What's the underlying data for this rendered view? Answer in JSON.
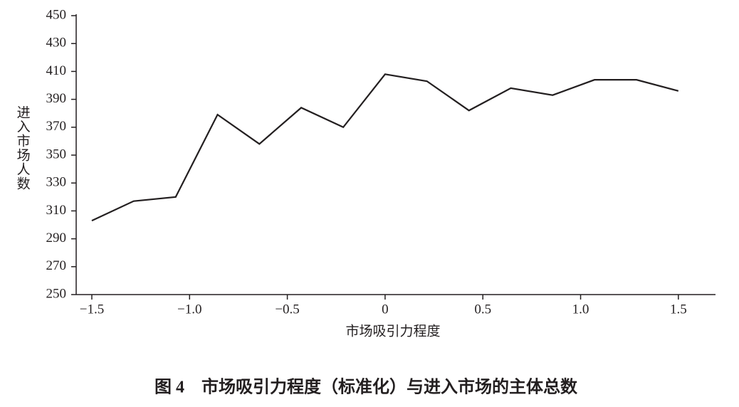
{
  "chart_data": {
    "type": "line",
    "title": "图 4　市场吸引力程度（标准化）与进入市场的主体总数",
    "x_label": "市场吸引力程度",
    "y_label": "进入市场人数",
    "x": [
      -1.5,
      -1.286,
      -1.071,
      -0.857,
      -0.643,
      -0.429,
      -0.214,
      0,
      0.214,
      0.429,
      0.643,
      0.857,
      1.071,
      1.286,
      1.5
    ],
    "series": [
      {
        "color": "#231f20",
        "values": [
          303,
          317,
          320,
          379,
          358,
          384,
          370,
          408,
          403,
          382,
          398,
          393,
          404,
          404,
          396
        ]
      }
    ],
    "xlim": [
      -1.58,
      1.69
    ],
    "ylim": [
      250,
      450
    ],
    "xticks": [
      {
        "value": -1.5,
        "label": "−1.5"
      },
      {
        "value": -1,
        "label": "−1.0"
      },
      {
        "value": -0.5,
        "label": "−0.5"
      },
      0,
      0.5,
      {
        "value": 1,
        "label": "1.0"
      },
      1.5
    ],
    "yticks": [
      250,
      270,
      290,
      310,
      330,
      350,
      370,
      390,
      410,
      430,
      450
    ],
    "grid": false
  }
}
